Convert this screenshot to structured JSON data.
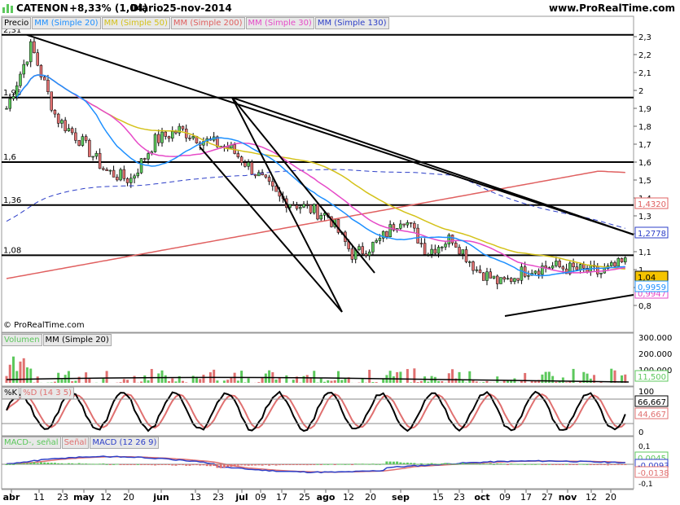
{
  "header": {
    "ticker": "CATENON",
    "change": "+8,33% (1,04)",
    "period": "Diario",
    "date": "25-nov-2014",
    "site": "www.ProRealTime.com"
  },
  "copyright": "© ProRealTime.com",
  "colors": {
    "mm20": "#1e90ff",
    "mm50": "#d4c21a",
    "mm200": "#e06060",
    "mm30": "#e64ac8",
    "mm130": "#2d3fc8",
    "up": "#5cc85c",
    "down": "#e07070",
    "stoch_k": "#000000",
    "stoch_d": "#e07070",
    "macd": "#2d3fc8",
    "signal": "#e07070"
  },
  "price_panel": {
    "legend": [
      "Precio",
      "MM (Simple 20)",
      "MM (Simple 50)",
      "MM (Simple 200)",
      "MM (Simple 30)",
      "MM (Simple 130)"
    ],
    "axis_ticks": [
      "2,3",
      "2,2",
      "2,1",
      "2",
      "1,9",
      "1,8",
      "1,7",
      "1,6",
      "1,5",
      "1,4",
      "1,3",
      "1,2",
      "1,1",
      "1",
      "0,9",
      "0,8"
    ],
    "level_labels": [
      "2,31",
      "1,96",
      "1,6",
      "1,36",
      "1,08"
    ],
    "value_tags": [
      {
        "text": "1,4320",
        "color": "#e06060"
      },
      {
        "text": "1,2778",
        "color": "#2d3fc8"
      },
      {
        "text": "1,04",
        "color": "#000000",
        "bg": "#f5c400"
      },
      {
        "text": "0,9947",
        "color": "#e64ac8"
      },
      {
        "text": "0,9959",
        "color": "#1e90ff"
      }
    ]
  },
  "volume_panel": {
    "legend": [
      "Volumen",
      "MM (Simple 20)"
    ],
    "axis_ticks": [
      "300.000",
      "200.000",
      "100.000"
    ],
    "value_tag": "11,500"
  },
  "stoch_panel": {
    "legend": [
      "%K",
      "%D (14 3 5)"
    ],
    "axis_ticks": [
      "100",
      "50",
      "0"
    ],
    "value_tags": [
      "66,667",
      "44,667"
    ]
  },
  "macd_panel": {
    "legend": [
      "MACD-, señal",
      "Señal",
      "MACD (12 26 9)"
    ],
    "axis_ticks": [
      "0,1",
      "0,05",
      "0",
      "-0,05",
      "-0,1"
    ],
    "value_tags": [
      {
        "text": "0,0045",
        "color": "#5cc85c"
      },
      {
        "text": "-0,0093",
        "color": "#2d3fc8"
      },
      {
        "text": "-0,0138",
        "color": "#e07070"
      }
    ]
  },
  "x_axis": {
    "labels": [
      "abr",
      "11",
      "23",
      "may",
      "12",
      "20",
      "jun",
      "13",
      "23",
      "jul",
      "09",
      "17",
      "25",
      "ago",
      "12",
      "20",
      "sep",
      "15",
      "23",
      "oct",
      "09",
      "17",
      "27",
      "nov",
      "12",
      "20"
    ]
  },
  "chart_data": {
    "type": "candlestick",
    "title": "CATENON",
    "period": "Diario",
    "dates": [
      "abr",
      "11",
      "23",
      "may",
      "12",
      "20",
      "jun",
      "13",
      "23",
      "jul",
      "09",
      "17",
      "25",
      "ago",
      "12",
      "20",
      "sep",
      "15",
      "23",
      "oct",
      "09",
      "17",
      "27",
      "nov",
      "12",
      "20"
    ],
    "ylim": [
      0.77,
      2.35
    ],
    "close_approx": [
      1.9,
      2.25,
      1.85,
      1.72,
      1.55,
      1.5,
      1.72,
      1.78,
      1.72,
      1.68,
      1.55,
      1.4,
      1.35,
      1.3,
      1.08,
      1.15,
      1.3,
      1.1,
      1.18,
      1.0,
      0.92,
      1.0,
      1.02,
      1.0,
      0.98,
      1.04
    ],
    "horizontal_levels": [
      2.31,
      1.96,
      1.6,
      1.36,
      1.08
    ],
    "moving_averages": {
      "MM (Simple 20) last": 0.9959,
      "MM (Simple 30) last": 0.9947,
      "MM (Simple 130) last": 1.2778,
      "MM (Simple 200) last": 1.432
    },
    "last_price": 1.04,
    "volume": {
      "ylim": [
        0,
        300000
      ],
      "mm20_last": 11500
    },
    "stochastic": {
      "k_last": 66.667,
      "d_last": 44.667,
      "ylim": [
        0,
        100
      ]
    },
    "macd": {
      "histogram_last": 0.0045,
      "macd_last": -0.0093,
      "signal_last": -0.0138,
      "ylim": [
        -0.1,
        0.1
      ]
    }
  }
}
